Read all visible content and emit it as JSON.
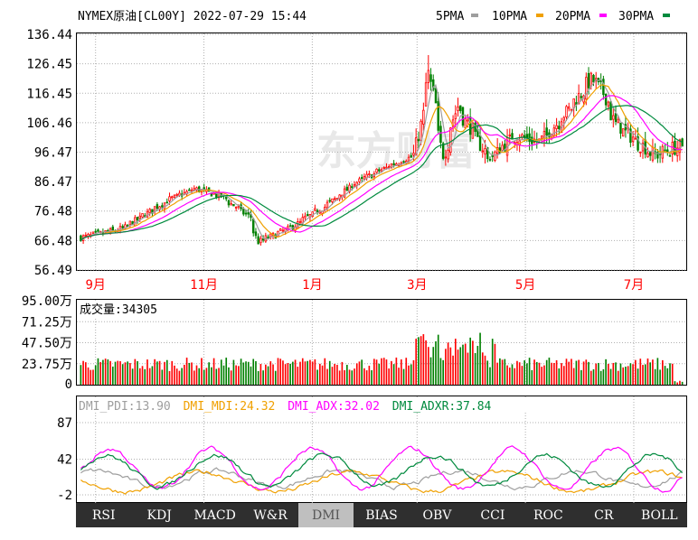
{
  "header": {
    "title": "NYMEX原油[CL00Y] 2022-07-29 15:44",
    "legend": [
      {
        "label": "5PMA",
        "color": "#9e9e9e"
      },
      {
        "label": "10PMA",
        "color": "#f0a000"
      },
      {
        "label": "20PMA",
        "color": "#ff00ff"
      },
      {
        "label": "30PMA",
        "color": "#008a3e"
      }
    ]
  },
  "watermark": "东方财富",
  "colors": {
    "up": "#ff0000",
    "down": "#008000",
    "axis": "#000000",
    "grid": "#b0b0b0"
  },
  "chart_data": [
    {
      "type": "candlestick",
      "name": "price",
      "ylim": [
        56.49,
        136.44
      ],
      "yticks": [
        "136.44",
        "126.45",
        "116.45",
        "106.46",
        "96.47",
        "86.47",
        "76.48",
        "66.48",
        "56.49"
      ],
      "xticks": [
        "9月",
        "11月",
        "1月",
        "3月",
        "5月",
        "7月"
      ],
      "x_range": [
        "2021-08-23",
        "2022-07-29"
      ],
      "grid": true,
      "keypoints": [
        [
          "2021-08-23",
          67.5
        ],
        [
          "2021-09-15",
          70.5
        ],
        [
          "2021-10-10",
          80.0
        ],
        [
          "2021-10-26",
          84.0
        ],
        [
          "2021-11-10",
          81.5
        ],
        [
          "2021-11-26",
          74.5
        ],
        [
          "2021-12-01",
          66.0
        ],
        [
          "2021-12-20",
          71.0
        ],
        [
          "2022-01-10",
          79.0
        ],
        [
          "2022-01-25",
          86.0
        ],
        [
          "2022-02-14",
          92.0
        ],
        [
          "2022-02-28",
          95.5
        ],
        [
          "2022-03-08",
          123.0
        ],
        [
          "2022-03-16",
          95.0
        ],
        [
          "2022-03-24",
          112.0
        ],
        [
          "2022-04-11",
          94.0
        ],
        [
          "2022-04-25",
          102.0
        ],
        [
          "2022-05-10",
          100.0
        ],
        [
          "2022-05-25",
          110.0
        ],
        [
          "2022-06-08",
          121.0
        ],
        [
          "2022-06-14",
          118.0
        ],
        [
          "2022-06-22",
          106.0
        ],
        [
          "2022-07-05",
          99.5
        ],
        [
          "2022-07-14",
          95.5
        ],
        [
          "2022-07-29",
          98.5
        ]
      ]
    },
    {
      "type": "bar",
      "name": "volume",
      "label": "成交量:",
      "value": "34305",
      "ylim": [
        0,
        95
      ],
      "yticks": [
        "95.00万",
        "71.25万",
        "47.50万",
        "23.75万",
        "0"
      ],
      "baseline_wan": 22,
      "grid": true
    },
    {
      "type": "line",
      "name": "DMI",
      "ylim": [
        -2,
        87
      ],
      "yticks": [
        "87",
        "42",
        "-2"
      ],
      "series": [
        {
          "name": "DMI_PDI",
          "value": "13.90",
          "color": "#9e9e9e"
        },
        {
          "name": "DMI_MDI",
          "value": "24.32",
          "color": "#f0a000"
        },
        {
          "name": "DMI_ADX",
          "value": "32.02",
          "color": "#ff00ff"
        },
        {
          "name": "DMI_ADXR",
          "value": "37.84",
          "color": "#008a3e"
        }
      ],
      "grid": true
    }
  ],
  "tabs": [
    {
      "label": "RSI"
    },
    {
      "label": "KDJ"
    },
    {
      "label": "MACD"
    },
    {
      "label": "W&R"
    },
    {
      "label": "DMI",
      "active": true
    },
    {
      "label": "BIAS"
    },
    {
      "label": "OBV"
    },
    {
      "label": "CCI"
    },
    {
      "label": "ROC"
    },
    {
      "label": "CR"
    },
    {
      "label": "BOLL"
    }
  ]
}
